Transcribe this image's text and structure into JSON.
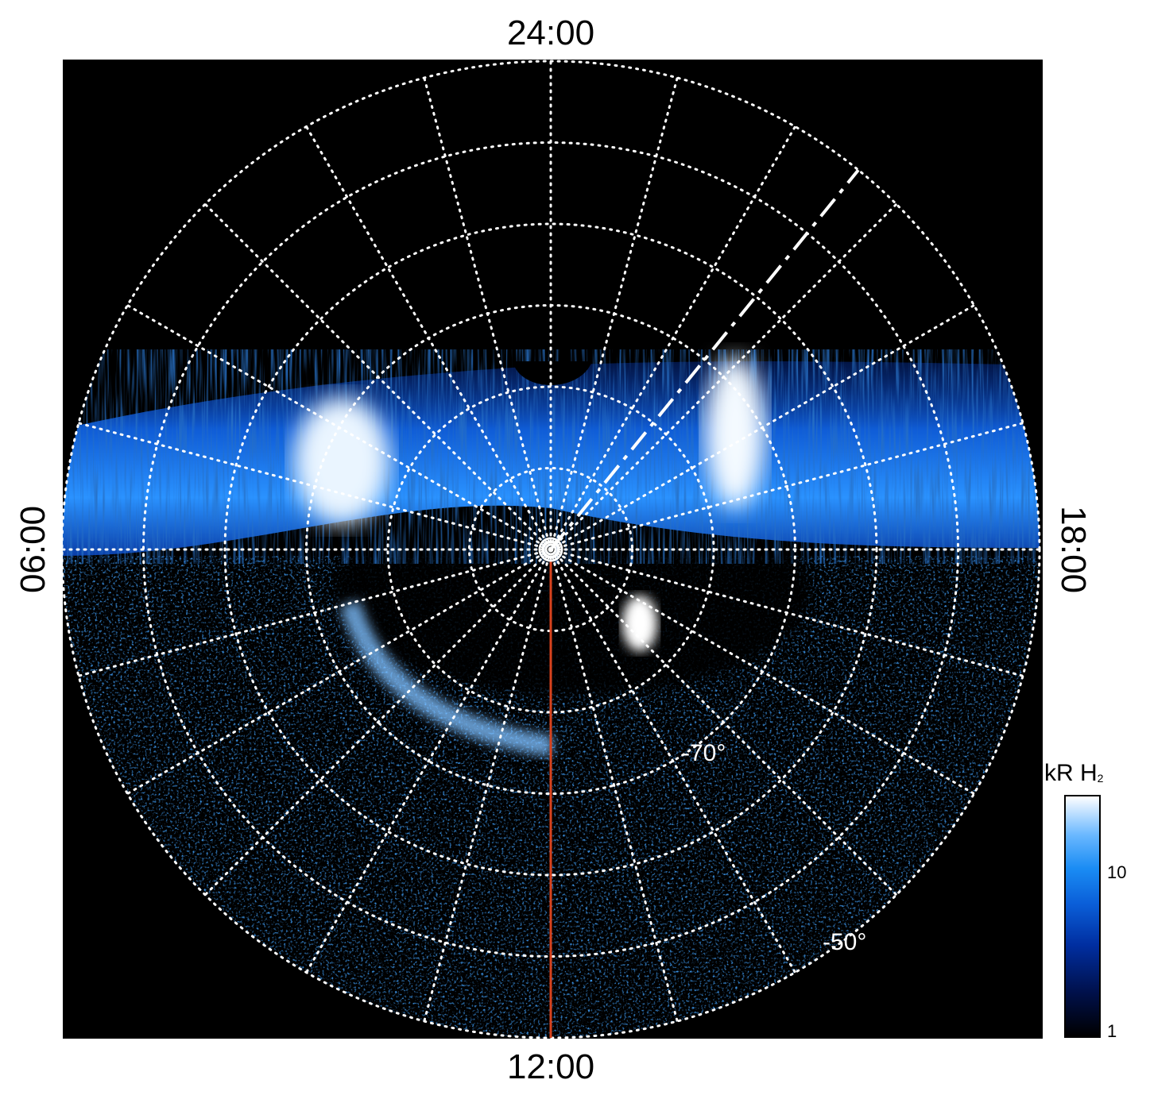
{
  "figure": {
    "local_time_labels": {
      "top": "24:00",
      "bottom": "12:00",
      "left": "06:00",
      "right": "18:00"
    },
    "latitude_labels": [
      "-70°",
      "-50°"
    ]
  },
  "colorbar": {
    "title": "kR H",
    "title_subscript": "2",
    "ticks": [
      "1",
      "10"
    ],
    "scale": "log",
    "colors": [
      "#000000",
      "#00104a",
      "#002ea0",
      "#0a5ed8",
      "#1a8cf4",
      "#6ab8ff",
      "#ffffff"
    ]
  },
  "chart_data": {
    "type": "heatmap",
    "projection": "polar (southern hemisphere, local time vs latitude)",
    "title": "",
    "colorbar_label": "kR H2",
    "colorbar_range": [
      1,
      25
    ],
    "colorbar_scale": "log",
    "local_time_axis": [
      "24:00",
      "06:00",
      "12:00",
      "18:00"
    ],
    "latitude_circles_deg": [
      -90,
      -80,
      -70,
      -60,
      -50,
      -40,
      -30
    ],
    "local_time_meridians_hours": [
      0,
      1,
      2,
      3,
      4,
      5,
      6,
      7,
      8,
      9,
      10,
      11,
      12,
      13,
      14,
      15,
      16,
      17,
      18,
      19,
      20,
      21,
      22,
      23
    ],
    "grid": true,
    "annotations": {
      "dashed_line_local_time_h": 21.4,
      "red_line_local_time_h": 12
    },
    "features": [
      {
        "name": "main emission oval band",
        "latitude_range_deg": [
          -63,
          -75
        ],
        "local_time_range_h": [
          18,
          6
        ],
        "intensity_kR": 15
      },
      {
        "name": "dawn bright spot",
        "local_time_h": 4.2,
        "latitude_deg": -67,
        "intensity_kR": 25
      },
      {
        "name": "dusk bright spot",
        "local_time_h": 20.3,
        "latitude_deg": -68,
        "intensity_kR": 25
      },
      {
        "name": "dayside arc",
        "local_time_range_h": [
          8,
          12
        ],
        "latitude_deg": -73,
        "intensity_kR": 12
      },
      {
        "name": "afternoon spot",
        "local_time_h": 14.5,
        "latitude_deg": -80,
        "intensity_kR": 22
      }
    ]
  }
}
